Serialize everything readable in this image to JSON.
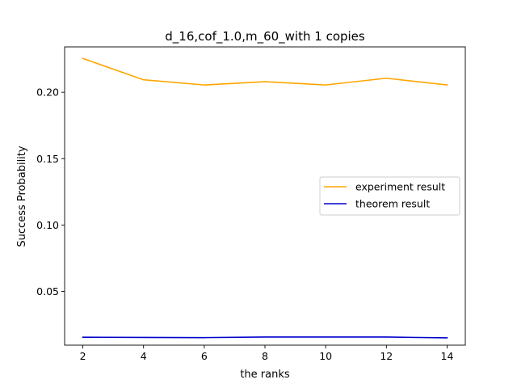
{
  "chart_data": {
    "type": "line",
    "title": "d_16,cof_1.0,m_60_with 1 copies",
    "xlabel": "the ranks",
    "ylabel": "Success Probability",
    "x": [
      2,
      4,
      6,
      8,
      10,
      12,
      14
    ],
    "xticks": [
      "2",
      "4",
      "6",
      "8",
      "10",
      "12",
      "14"
    ],
    "xlim": [
      1.4,
      14.6
    ],
    "yticks": [
      "0.05",
      "0.10",
      "0.15",
      "0.20"
    ],
    "ytick_values": [
      0.05,
      0.1,
      0.15,
      0.2
    ],
    "ylim": [
      0.0095,
      0.2342
    ],
    "grid": false,
    "legend_position": "center-right",
    "series": [
      {
        "name": "experiment result",
        "color": "#ffa500",
        "values": [
          0.2255,
          0.2094,
          0.2055,
          0.208,
          0.2055,
          0.2106,
          0.2055
        ]
      },
      {
        "name": "theorem result",
        "color": "#0000cd",
        "values": [
          0.0155,
          0.0153,
          0.0152,
          0.0156,
          0.0156,
          0.0156,
          0.015
        ]
      }
    ]
  }
}
